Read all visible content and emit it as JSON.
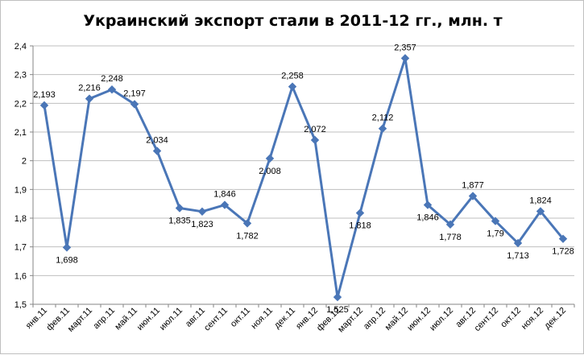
{
  "chart_data": {
    "type": "line",
    "title": "Украинский экспорт стали в 2011-12 гг., млн. т",
    "xlabel": "",
    "ylabel": "",
    "ylim": [
      1.5,
      2.4
    ],
    "yticks": [
      "1,5",
      "1,6",
      "1,7",
      "1,8",
      "1,9",
      "2",
      "2,1",
      "2,2",
      "2,3",
      "2,4"
    ],
    "grid": true,
    "legend": "none",
    "colors": {
      "line": "#4a76b7",
      "grid": "#bfbfbf",
      "axis": "#868686"
    },
    "categories": [
      "янв.11",
      "фев.11",
      "март.11",
      "апр.11",
      "май.11",
      "июн.11",
      "июл.11",
      "авг.11",
      "сент.11",
      "окт.11",
      "ноя.11",
      "дек.11",
      "янв.12",
      "фев.12",
      "март.12",
      "апр.12",
      "май.12",
      "июн.12",
      "июл.12",
      "авг.12",
      "сент.12",
      "окт.12",
      "ноя.12",
      "дек.12"
    ],
    "series": [
      {
        "values": [
          2.193,
          1.698,
          2.216,
          2.248,
          2.197,
          2.034,
          1.835,
          1.823,
          1.846,
          1.782,
          2.008,
          2.258,
          2.072,
          1.525,
          1.818,
          2.112,
          2.357,
          1.846,
          1.778,
          1.877,
          1.79,
          1.713,
          1.824,
          1.728
        ],
        "labels": [
          "2,193",
          "1,698",
          "2,216",
          "2,248",
          "2,197",
          "2,034",
          "1,835",
          "1,823",
          "1,846",
          "1,782",
          "2,008",
          "2,258",
          "2,072",
          "1,525",
          "1,818",
          "2,112",
          "2,357",
          "1,846",
          "1,778",
          "1,877",
          "1,79",
          "1,713",
          "1,824",
          "1,728"
        ]
      }
    ]
  }
}
